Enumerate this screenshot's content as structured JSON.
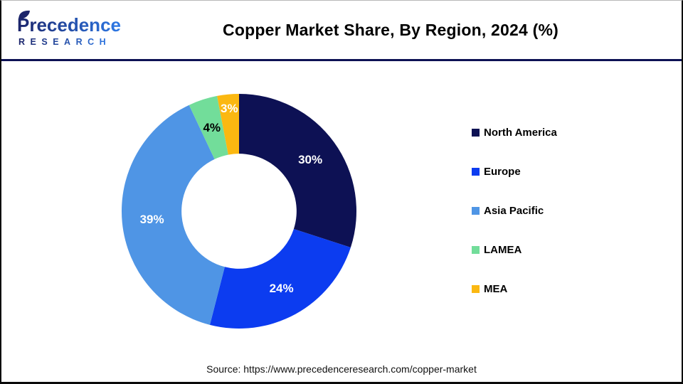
{
  "header": {
    "logo": {
      "line1": "Precedence",
      "line2": "RESEARCH"
    },
    "title": "Copper Market Share, By Region, 2024 (%)"
  },
  "chart_data": {
    "type": "pie",
    "subtype": "donut",
    "title": "Copper Market Share, By Region, 2024 (%)",
    "categories": [
      "North America",
      "Europe",
      "Asia Pacific",
      "LAMEA",
      "MEA"
    ],
    "values": [
      30,
      24,
      39,
      4,
      3
    ],
    "unit": "%",
    "colors": [
      "#0D1154",
      "#0C3CF0",
      "#4F95E5",
      "#72DD9A",
      "#FBB811"
    ],
    "label_colors": [
      "#FFFFFF",
      "#FFFFFF",
      "#FFFFFF",
      "#000000",
      "#FFFFFF"
    ],
    "label_radius_factors": [
      0.75,
      0.75,
      0.745,
      0.75,
      0.88
    ],
    "start_angle_deg": 0,
    "direction": "clockwise",
    "inner_radius_ratio": 0.49,
    "legend_position": "right",
    "grid": false
  },
  "footer": {
    "source": "Source: https://www.precedenceresearch.com/copper-market"
  },
  "colors": {
    "divider": "#0D1154",
    "frame_border": "#0A0A0A",
    "background": "#FFFFFF",
    "title_text": "#000000",
    "logo_gradient_start": "#1B246A",
    "logo_gradient_end": "#2E79E6"
  }
}
